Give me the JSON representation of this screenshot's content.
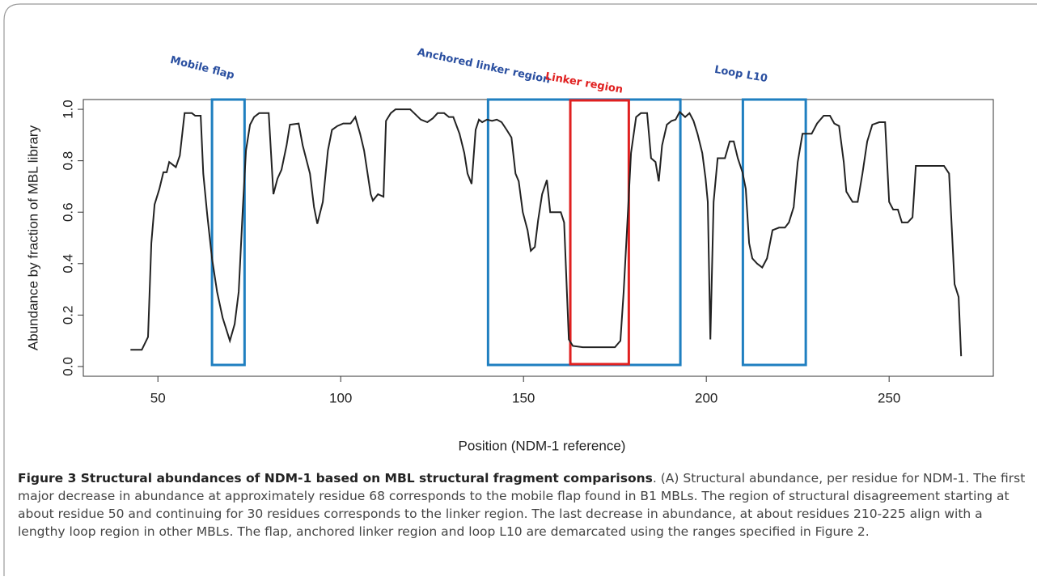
{
  "chart_data": {
    "type": "line",
    "xlabel": "Position (NDM-1 reference)",
    "ylabel": "Abundance by fraction of MBL library",
    "xlim": [
      29.6,
      278.5
    ],
    "ylim": [
      -0.038,
      1.038
    ],
    "xticks": [
      50,
      100,
      150,
      200,
      250
    ],
    "yticks": [
      {
        "value": 0,
        "label": "0.0"
      },
      {
        "value": 0.2,
        "label": "0.2"
      },
      {
        "value": 0.4,
        "label": "0.4"
      },
      {
        "value": 0.6,
        "label": "0.6"
      },
      {
        "value": 0.8,
        "label": "0.8"
      },
      {
        "value": 1,
        "label": "1.0"
      }
    ],
    "color": "#222222",
    "x": [
      42.5,
      45.6,
      47.3,
      48.2,
      49.1,
      50.4,
      51.5,
      52.4,
      53.1,
      54.9,
      56,
      57.3,
      59.3,
      60.2,
      61.7,
      62.4,
      63.5,
      64.8,
      66.2,
      67.7,
      69.7,
      71,
      72.1,
      73.2,
      74.1,
      75.2,
      76.3,
      77.7,
      80.3,
      81.6,
      82.7,
      83.8,
      85.2,
      86.1,
      88.5,
      89.6,
      91.6,
      92.7,
      93.6,
      95.1,
      96.5,
      97.6,
      99.1,
      100.7,
      102.7,
      104,
      105.3,
      106.4,
      108.2,
      108.8,
      110.2,
      111.7,
      112.4,
      113.7,
      115,
      117.5,
      119,
      120.1,
      121.9,
      123.7,
      125.2,
      126.5,
      128.3,
      129.6,
      130.8,
      132.5,
      133.8,
      134.7,
      135.8,
      136.9,
      137.8,
      138.7,
      140,
      141.4,
      142.7,
      144,
      145.4,
      146.7,
      147.8,
      148.7,
      149.8,
      151.1,
      152,
      153.1,
      154,
      155.1,
      156.4,
      157.3,
      160.2,
      161.1,
      162.4,
      163.5,
      166.2,
      175,
      176.5,
      177.4,
      178.3,
      179.4,
      180.8,
      182.1,
      183.8,
      184.9,
      186.1,
      187,
      187.9,
      189.2,
      190.5,
      191.6,
      192.7,
      194.2,
      195.4,
      196.5,
      197.6,
      198.9,
      199.8,
      200.4,
      201.1,
      202,
      203.1,
      205.1,
      206.4,
      207.5,
      208.6,
      209.9,
      210.8,
      211.7,
      212.6,
      213.9,
      215.3,
      216.6,
      218.1,
      219.9,
      221.5,
      222.6,
      223.9,
      225,
      226.3,
      228.8,
      230.3,
      232.1,
      233.8,
      235,
      236.3,
      237.6,
      238.3,
      240,
      241.4,
      242.7,
      244,
      245.4,
      247.3,
      248.9,
      250,
      251.1,
      252.4,
      253.5,
      255.1,
      256.4,
      257.3,
      265,
      266.4,
      267.9,
      269,
      269.7
    ],
    "values": [
      0.065,
      0.065,
      0.115,
      0.48,
      0.63,
      0.69,
      0.755,
      0.755,
      0.795,
      0.775,
      0.82,
      0.985,
      0.985,
      0.975,
      0.975,
      0.75,
      0.59,
      0.42,
      0.29,
      0.19,
      0.1,
      0.165,
      0.29,
      0.61,
      0.84,
      0.94,
      0.97,
      0.985,
      0.985,
      0.67,
      0.73,
      0.765,
      0.86,
      0.94,
      0.945,
      0.86,
      0.75,
      0.62,
      0.555,
      0.64,
      0.84,
      0.92,
      0.935,
      0.945,
      0.945,
      0.97,
      0.905,
      0.84,
      0.67,
      0.645,
      0.67,
      0.66,
      0.955,
      0.985,
      1.0,
      1.0,
      1.0,
      0.985,
      0.96,
      0.95,
      0.965,
      0.985,
      0.985,
      0.97,
      0.97,
      0.905,
      0.83,
      0.75,
      0.71,
      0.92,
      0.96,
      0.95,
      0.96,
      0.955,
      0.96,
      0.95,
      0.92,
      0.89,
      0.75,
      0.72,
      0.6,
      0.53,
      0.45,
      0.465,
      0.57,
      0.67,
      0.725,
      0.6,
      0.6,
      0.56,
      0.105,
      0.08,
      0.075,
      0.075,
      0.1,
      0.29,
      0.53,
      0.83,
      0.97,
      0.985,
      0.985,
      0.81,
      0.795,
      0.72,
      0.86,
      0.94,
      0.955,
      0.96,
      0.99,
      0.97,
      0.985,
      0.955,
      0.905,
      0.83,
      0.73,
      0.64,
      0.105,
      0.64,
      0.81,
      0.81,
      0.875,
      0.875,
      0.81,
      0.755,
      0.69,
      0.48,
      0.42,
      0.4,
      0.385,
      0.42,
      0.53,
      0.54,
      0.54,
      0.56,
      0.62,
      0.795,
      0.905,
      0.905,
      0.945,
      0.975,
      0.975,
      0.945,
      0.935,
      0.795,
      0.68,
      0.64,
      0.64,
      0.75,
      0.875,
      0.94,
      0.95,
      0.95,
      0.64,
      0.61,
      0.61,
      0.56,
      0.56,
      0.58,
      0.78,
      0.78,
      0.75,
      0.32,
      0.27,
      0.04
    ],
    "regions": [
      {
        "label": "Mobile flap",
        "start": 64.8,
        "end": 73.7,
        "color": "#1f7fc0",
        "label_color": "#2a4fa0"
      },
      {
        "label": "Anchored linker region",
        "start": 140.3,
        "end": 192.9,
        "color": "#1f7fc0",
        "label_color": "#2a4fa0"
      },
      {
        "label": "Linker region",
        "start": 162.8,
        "end": 178.8,
        "color": "#e02020",
        "label_color": "#e02020"
      },
      {
        "label": "Loop L10",
        "start": 210,
        "end": 227.2,
        "color": "#1f7fc0",
        "label_color": "#2a4fa0"
      }
    ]
  },
  "caption": {
    "title": "Figure 3 Structural abundances of NDM-1 based on MBL structural fragment comparisons",
    "text": ". (A) Structural abundance, per residue for NDM-1. The first major decrease in abundance at approximately residue 68 corresponds to the mobile flap found in B1 MBLs. The region of structural disagreement starting at about residue 50 and continuing for 30 residues corresponds to the linker region. The last decrease in abundance, at about residues 210-225 align with a lengthy loop region in other MBLs. The flap, anchored linker region and loop L10 are demarcated using the ranges specified in Figure 2."
  }
}
